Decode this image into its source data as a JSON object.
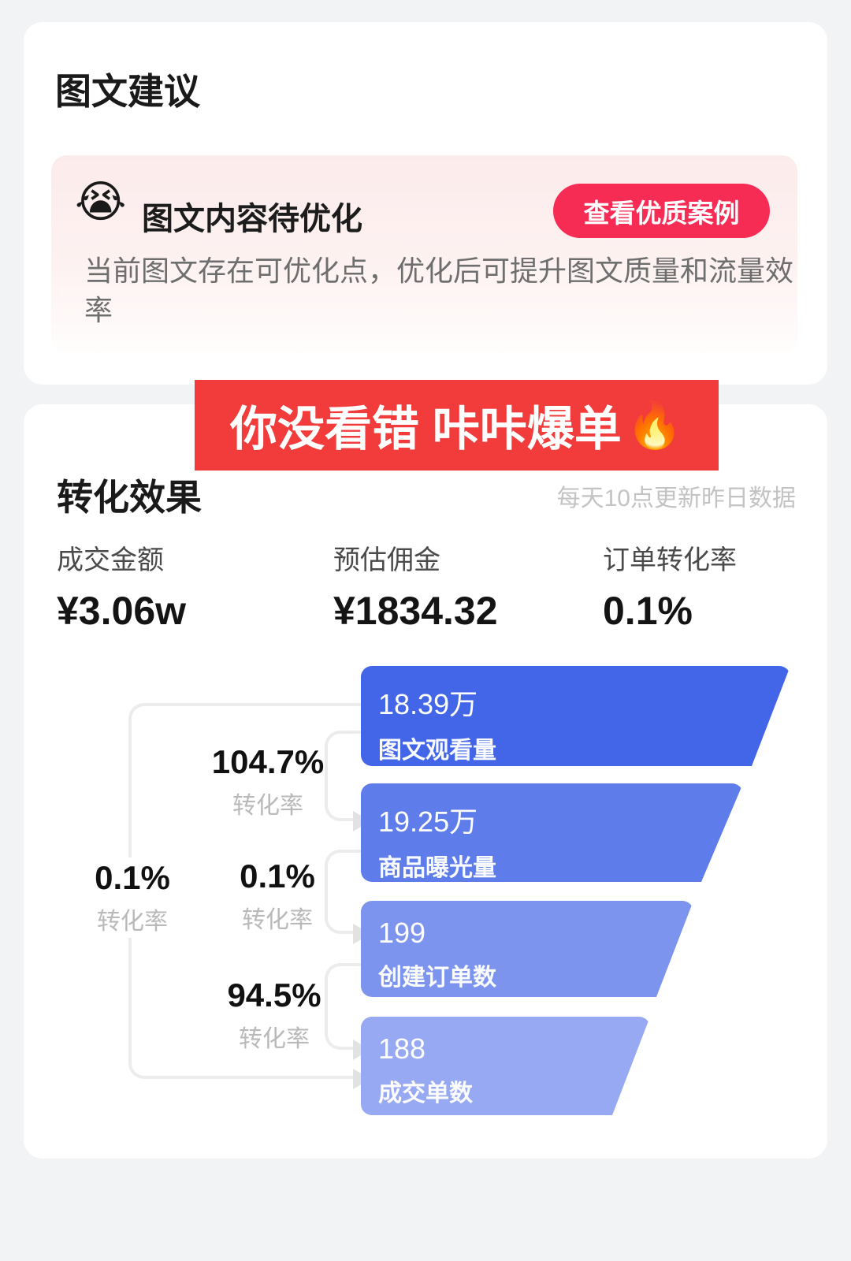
{
  "suggestion_card": {
    "title": "图文建议",
    "alert": {
      "emoji": "😭",
      "title": "图文内容待优化",
      "button_label": "查看优质案例",
      "description": "当前图文存在可优化点，优化后可提升图文质量和流量效率"
    }
  },
  "promo_banner": {
    "text": "你没看错 咔咔爆单",
    "emoji": "🔥",
    "color": "#f23b3b"
  },
  "conversion_card": {
    "title": "转化效果",
    "update_note": "每天10点更新昨日数据",
    "stats": [
      {
        "label": "成交金额",
        "value": "¥3.06w"
      },
      {
        "label": "预估佣金",
        "value": "¥1834.32"
      },
      {
        "label": "订单转化率",
        "value": "0.1%"
      }
    ],
    "chart_data": {
      "type": "funnel",
      "title": "转化效果",
      "stages": [
        {
          "value": "18.39万",
          "label": "图文观看量",
          "color": "#4366e8"
        },
        {
          "value": "19.25万",
          "label": "商品曝光量",
          "color": "#5e7deb"
        },
        {
          "value": "199",
          "label": "创建订单数",
          "color": "#7d94ef"
        },
        {
          "value": "188",
          "label": "成交单数",
          "color": "#97a9f2"
        }
      ],
      "conversions": [
        {
          "from": "图文观看量",
          "to": "商品曝光量",
          "rate": "104.7%",
          "label": "转化率"
        },
        {
          "from": "商品曝光量",
          "to": "创建订单数",
          "rate": "0.1%",
          "label": "转化率"
        },
        {
          "from": "创建订单数",
          "to": "成交单数",
          "rate": "94.5%",
          "label": "转化率"
        },
        {
          "from": "图文观看量",
          "to": "成交单数",
          "rate": "0.1%",
          "label": "转化率"
        }
      ]
    },
    "accent_colors": {
      "button_red": "#f72c55",
      "banner_red": "#f23b3b"
    }
  }
}
